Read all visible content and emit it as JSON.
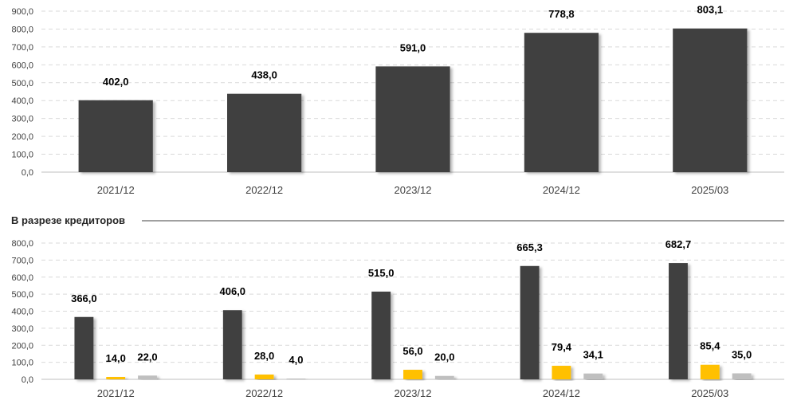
{
  "colors": {
    "primary": "#404040",
    "secondary": "#ffc000",
    "tertiary": "#bfbfbf"
  },
  "chart_data": [
    {
      "type": "bar",
      "categories": [
        "2021/12",
        "2022/12",
        "2023/12",
        "2024/12",
        "2025/03"
      ],
      "series": [
        {
          "values": [
            402.0,
            438.0,
            591.0,
            778.8,
            803.1
          ],
          "labels": [
            "402,0",
            "438,0",
            "591,0",
            "778,8",
            "803,1"
          ]
        }
      ],
      "ylim": [
        0,
        900
      ],
      "yticks": [
        "0,0",
        "100,0",
        "200,0",
        "300,0",
        "400,0",
        "500,0",
        "600,0",
        "700,0",
        "800,0",
        "900,0"
      ],
      "grid": true
    },
    {
      "type": "bar",
      "title": "В разрезе кредиторов",
      "categories": [
        "2021/12",
        "2022/12",
        "2023/12",
        "2024/12",
        "2025/03"
      ],
      "series": [
        {
          "values": [
            366.0,
            406.0,
            515.0,
            665.3,
            682.7
          ],
          "labels": [
            "366,0",
            "406,0",
            "515,0",
            "665,3",
            "682,7"
          ]
        },
        {
          "values": [
            14.0,
            28.0,
            56.0,
            79.4,
            85.4
          ],
          "labels": [
            "14,0",
            "28,0",
            "56,0",
            "79,4",
            "85,4"
          ]
        },
        {
          "values": [
            22.0,
            4.0,
            20.0,
            34.1,
            35.0
          ],
          "labels": [
            "22,0",
            "4,0",
            "20,0",
            "34,1",
            "35,0"
          ]
        }
      ],
      "ylim": [
        0,
        800
      ],
      "yticks": [
        "0,0",
        "100,0",
        "200,0",
        "300,0",
        "400,0",
        "500,0",
        "600,0",
        "700,0",
        "800,0"
      ],
      "grid": true
    }
  ]
}
